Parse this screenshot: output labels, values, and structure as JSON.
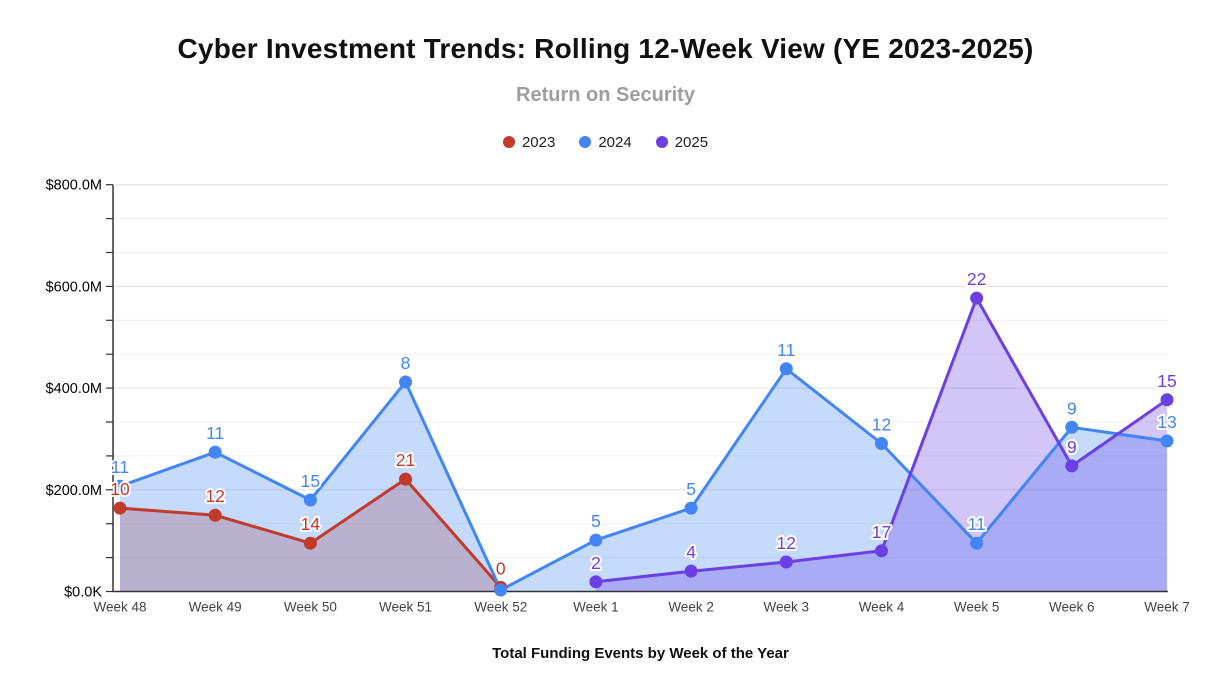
{
  "chart": {
    "title": "Cyber Investment Trends: Rolling 12-Week View (YE 2023-2025)",
    "subtitle": "Return on Security",
    "x_axis_title": "Total Funding Events by Week of the Year"
  },
  "chart_data": {
    "type": "area",
    "title": "Cyber Investment Trends: Rolling 12-Week View (YE 2023-2025)",
    "subtitle": "Return on Security",
    "xlabel": "Total Funding Events by Week of the Year",
    "ylabel": "",
    "categories": [
      "Week 48",
      "Week 49",
      "Week 50",
      "Week 51",
      "Week 52",
      "Week 1",
      "Week 2",
      "Week 3",
      "Week 4",
      "Week 5",
      "Week 6",
      "Week 7"
    ],
    "y_axis": {
      "tick_labels": [
        "$0.0K",
        "$200.0M",
        "$400.0M",
        "$600.0M",
        "$800.0M"
      ],
      "tick_values_musd": [
        0,
        200,
        400,
        600,
        800
      ],
      "min_musd": 0,
      "max_musd": 800,
      "minor_divisions_per_major": 3
    },
    "grid": true,
    "legend_position": "top",
    "legend": [
      {
        "label": "2023",
        "color": "#c23a2b"
      },
      {
        "label": "2024",
        "color": "#4285f4"
      },
      {
        "label": "2025",
        "color": "#6b40e3"
      }
    ],
    "series": [
      {
        "name": "2023",
        "color": "#c23a2b",
        "start_index": 0,
        "values_musd": [
          164,
          150,
          95,
          221,
          8
        ],
        "point_labels": [
          "10",
          "12",
          "14",
          "21",
          "0"
        ]
      },
      {
        "name": "2024",
        "color": "#4285f4",
        "start_index": 0,
        "values_musd": [
          207,
          274,
          180,
          412,
          3,
          101,
          164,
          438,
          291,
          95,
          323,
          296
        ],
        "point_labels": [
          "11",
          "11",
          "15",
          "8",
          null,
          "5",
          "5",
          "11",
          "12",
          "11",
          "9",
          "13"
        ]
      },
      {
        "name": "2025",
        "color": "#6b40e3",
        "start_index": 5,
        "values_musd": [
          19,
          40,
          58,
          80,
          577,
          247,
          377
        ],
        "point_labels": [
          "2",
          "4",
          "12",
          "17",
          "22",
          "9",
          "15"
        ]
      }
    ],
    "style": {
      "area_fill_opacity": 0.3,
      "line_width": 3,
      "point_radius": 6.5,
      "major_grid_color": "#e0e0e0",
      "minor_grid_color": "#efefef",
      "axis_color": "#333333",
      "background": "#ffffff"
    }
  }
}
